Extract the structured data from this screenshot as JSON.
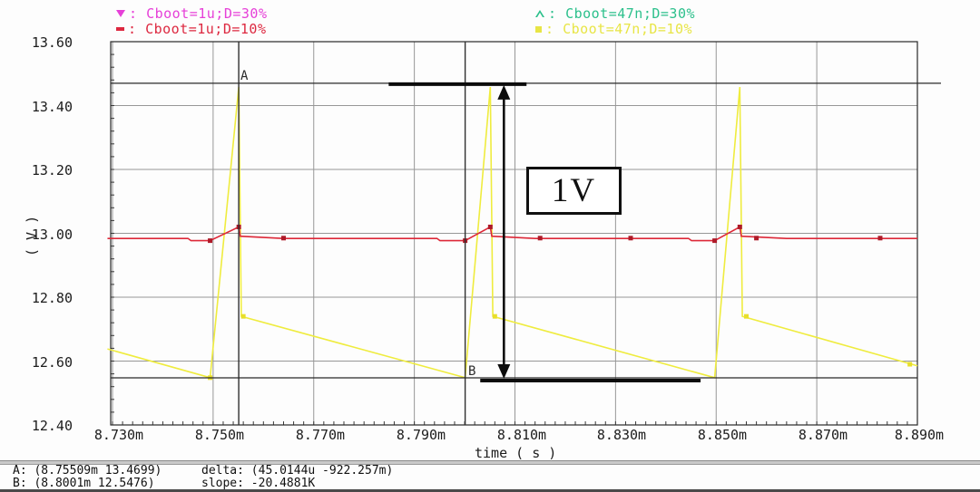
{
  "legend": {
    "items": [
      {
        "symbol": "triangle-down-icon",
        "color": "#e640d8",
        "label": "Cboot=1u;D=30%"
      },
      {
        "symbol": "dash-icon",
        "color": "#dd2840",
        "label": "Cboot=1u;D=10%"
      },
      {
        "symbol": "triangle-up-icon",
        "color": "#2cc08c",
        "label": "Cboot=47n;D=30%"
      },
      {
        "symbol": "square-icon",
        "color": "#e8e546",
        "label": "Cboot=47n;D=10%"
      }
    ]
  },
  "axis": {
    "ylabel": "( V )",
    "xlabel": "time ( s )",
    "y_ticks": [
      "13.60",
      "13.40",
      "13.20",
      "13.00",
      "12.80",
      "12.60",
      "12.40"
    ],
    "x_ticks": [
      "8.730m",
      "8.750m",
      "8.770m",
      "8.790m",
      "8.810m",
      "8.830m",
      "8.850m",
      "8.870m",
      "8.890m"
    ]
  },
  "annotations": {
    "marker_a_label": "A",
    "marker_b_label": "B",
    "delta_label": "1V"
  },
  "status": {
    "a": "A: (8.75509m 13.4699)",
    "b": "B: (8.8001m 12.5476)",
    "delta": "delta: (45.0144u -922.257m)",
    "slope": "slope: -20.4881K"
  },
  "chart_data": {
    "type": "line",
    "title": "",
    "xlabel": "time ( s )",
    "ylabel": "( V )",
    "xlim_ms": [
      8.73,
      8.89
    ],
    "ylim": [
      12.4,
      13.6
    ],
    "x_grid_ms": [
      8.73,
      8.75,
      8.77,
      8.79,
      8.81,
      8.83,
      8.85,
      8.87,
      8.89
    ],
    "y_grid": [
      13.6,
      13.4,
      13.2,
      13.0,
      12.8,
      12.6,
      12.4
    ],
    "grid": true,
    "legend_position": "top",
    "series": [
      {
        "name": "Cboot=1u;D=30%",
        "color": "#e640d8",
        "visible": false,
        "points": []
      },
      {
        "name": "Cboot=47n;D=30%",
        "color": "#2cc08c",
        "visible": false,
        "points": []
      },
      {
        "name": "Cboot=47n;D=10%",
        "color": "#efec3e",
        "visible": true,
        "points": [
          [
            8.729,
            12.638
          ],
          [
            8.7494,
            12.548
          ],
          [
            8.7551,
            13.458
          ],
          [
            8.7556,
            12.74
          ],
          [
            8.8001,
            12.548
          ],
          [
            8.8051,
            13.458
          ],
          [
            8.8056,
            12.74
          ],
          [
            8.8497,
            12.548
          ],
          [
            8.8547,
            13.458
          ],
          [
            8.8552,
            12.74
          ],
          [
            8.89,
            12.585
          ]
        ],
        "marker_color": "#e8df2a",
        "markers": [
          [
            8.7494,
            12.548
          ],
          [
            8.756,
            12.74
          ],
          [
            8.806,
            12.74
          ],
          [
            8.856,
            12.74
          ],
          [
            8.8885,
            12.59
          ]
        ]
      },
      {
        "name": "Cboot=1u;D=10%",
        "color": "#dd2838",
        "visible": true,
        "points": [
          [
            8.729,
            12.984
          ],
          [
            8.745,
            12.984
          ],
          [
            8.7456,
            12.977
          ],
          [
            8.7494,
            12.977
          ],
          [
            8.7551,
            13.02
          ],
          [
            8.7554,
            12.991
          ],
          [
            8.764,
            12.984
          ],
          [
            8.7945,
            12.984
          ],
          [
            8.7951,
            12.977
          ],
          [
            8.8001,
            12.977
          ],
          [
            8.8051,
            13.02
          ],
          [
            8.8054,
            12.991
          ],
          [
            8.814,
            12.984
          ],
          [
            8.8445,
            12.984
          ],
          [
            8.8451,
            12.977
          ],
          [
            8.8497,
            12.977
          ],
          [
            8.8547,
            13.02
          ],
          [
            8.855,
            12.991
          ],
          [
            8.864,
            12.984
          ],
          [
            8.89,
            12.984
          ]
        ],
        "marker_color": "#ae1a28",
        "markers": [
          [
            8.7494,
            12.977
          ],
          [
            8.7551,
            13.02
          ],
          [
            8.764,
            12.985
          ],
          [
            8.8001,
            12.977
          ],
          [
            8.8051,
            13.02
          ],
          [
            8.815,
            12.985
          ],
          [
            8.833,
            12.985
          ],
          [
            8.8497,
            12.977
          ],
          [
            8.8547,
            13.02
          ],
          [
            8.858,
            12.985
          ],
          [
            8.8826,
            12.985
          ]
        ]
      }
    ],
    "cursors": {
      "a": {
        "t_ms": 8.75509,
        "v": 13.4699
      },
      "b": {
        "t_ms": 8.8001,
        "v": 12.5476
      }
    },
    "delta_annotation": {
      "arrow_t_ms": 8.8078,
      "top_bar_ms": [
        8.7849,
        8.8123
      ],
      "bottom_bar_ms": [
        8.8031,
        8.8469
      ],
      "value_label": "1V"
    }
  }
}
